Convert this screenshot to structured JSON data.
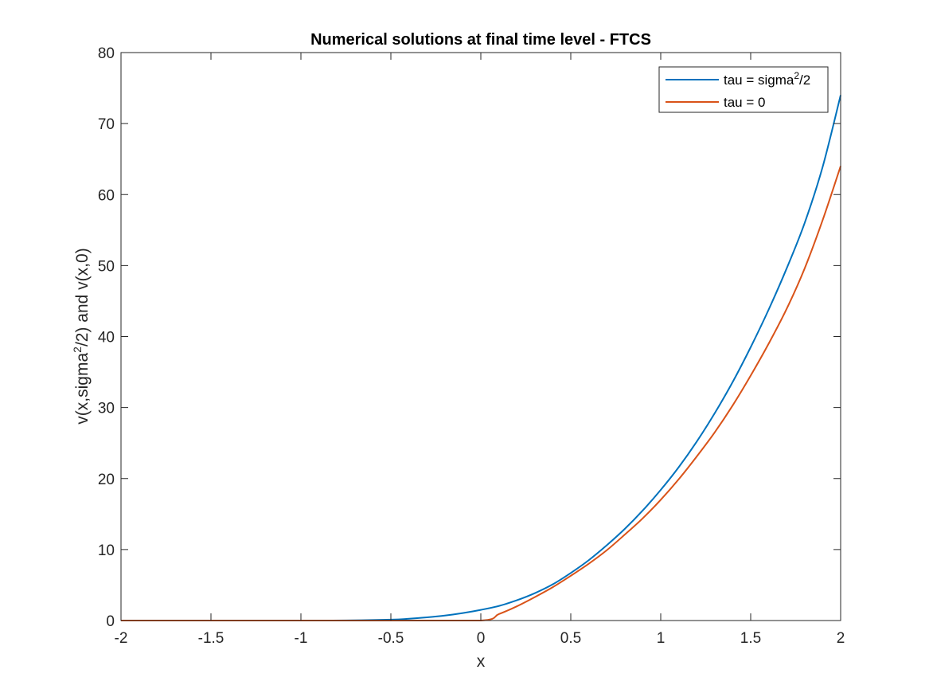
{
  "chart_data": {
    "type": "line",
    "title": "Numerical solutions at final time level - FTCS",
    "xlabel": "x",
    "ylabel": {
      "prefix": "v(x,sigma",
      "sup": "2",
      "suffix": "/2) and v(x,0)"
    },
    "xlim": [
      -2,
      2
    ],
    "ylim": [
      0,
      80
    ],
    "xticks": [
      -2,
      -1.5,
      -1,
      -0.5,
      0,
      0.5,
      1,
      1.5,
      2
    ],
    "xtick_labels": [
      "-2",
      "-1.5",
      "-1",
      "-0.5",
      "0",
      "0.5",
      "1",
      "1.5",
      "2"
    ],
    "yticks": [
      0,
      10,
      20,
      30,
      40,
      50,
      60,
      70,
      80
    ],
    "ytick_labels": [
      "0",
      "10",
      "20",
      "30",
      "40",
      "50",
      "60",
      "70",
      "80"
    ],
    "grid": false,
    "legend_position": "top-right",
    "series": [
      {
        "name": {
          "prefix": "tau = sigma",
          "sup": "2",
          "suffix": "/2"
        },
        "color": "#0072BD",
        "x": [
          -2,
          -1.5,
          -1,
          -0.75,
          -0.5,
          -0.4,
          -0.3,
          -0.2,
          -0.1,
          0,
          0.1,
          0.2,
          0.3,
          0.4,
          0.5,
          0.6,
          0.7,
          0.8,
          0.9,
          1,
          1.1,
          1.2,
          1.3,
          1.4,
          1.5,
          1.6,
          1.7,
          1.8,
          1.9,
          2
        ],
        "y": [
          0,
          0,
          0,
          0.02,
          0.12,
          0.25,
          0.45,
          0.7,
          1.05,
          1.5,
          2.05,
          2.85,
          3.85,
          5.1,
          6.7,
          8.5,
          10.6,
          12.9,
          15.5,
          18.4,
          21.6,
          25.2,
          29.2,
          33.6,
          38.5,
          43.8,
          49.6,
          56.0,
          63.9,
          74.0
        ]
      },
      {
        "name": "tau = 0",
        "color": "#D95319",
        "x": [
          -2,
          -1.5,
          -1,
          -0.5,
          0,
          0.1,
          0.2,
          0.3,
          0.4,
          0.5,
          0.6,
          0.7,
          0.8,
          0.9,
          1,
          1.1,
          1.2,
          1.3,
          1.4,
          1.5,
          1.6,
          1.7,
          1.8,
          1.9,
          2
        ],
        "y": [
          0,
          0,
          0,
          0,
          0,
          0.9,
          2.0,
          3.3,
          4.7,
          6.3,
          8.0,
          9.9,
          12.1,
          14.4,
          17.0,
          19.9,
          23.1,
          26.5,
          30.3,
          34.5,
          39.0,
          43.9,
          49.6,
          56.4,
          64.0
        ]
      }
    ]
  }
}
